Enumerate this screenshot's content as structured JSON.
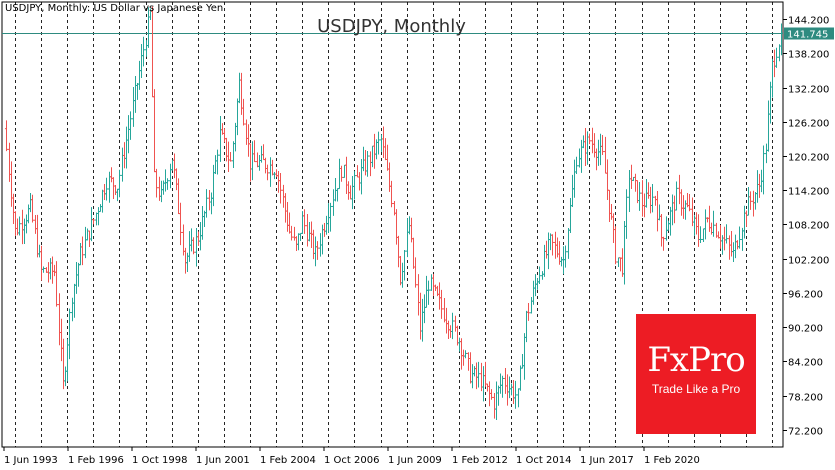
{
  "header": {
    "symbol_text": "USDJPY, Monthly:  US Dollar vs Japanese Yen"
  },
  "brand": {
    "name": "FxPro",
    "tagline": "Trade Like a Pro"
  },
  "colors": {
    "up": "#26a69a",
    "down": "#ef5350",
    "price_line": "#2e8b80",
    "logo_bg": "#ed1c24",
    "axis": "#000000"
  },
  "chart_data": {
    "type": "line",
    "subtype": "ohlc-bars",
    "title": "USDJPY, Monthly",
    "ylim": [
      69.2,
      147.2
    ],
    "y_ticks": [
      72.2,
      78.2,
      84.2,
      90.2,
      96.2,
      102.2,
      108.2,
      114.2,
      120.2,
      126.2,
      132.2,
      138.2,
      144.2
    ],
    "y_tick_labels": [
      "72.200",
      "78.200",
      "84.200",
      "90.200",
      "96.200",
      "102.200",
      "108.200",
      "114.200",
      "120.200",
      "126.200",
      "132.200",
      "138.200",
      "144.200"
    ],
    "x_tick_labels": [
      "1 Jun 1993",
      "1 Feb 1996",
      "1 Oct 1998",
      "1 Jun 2001",
      "1 Feb 2004",
      "1 Oct 2006",
      "1 Jun 2009",
      "1 Feb 2012",
      "1 Oct 2014",
      "1 Jun 2017",
      "1 Feb 2020"
    ],
    "grid": "vertical-dashed",
    "current_price": 141.745,
    "current_price_label": "141.745",
    "series": [
      {
        "name": "USDJPY",
        "points": [
          [
            "1993-01",
            125
          ],
          [
            "1993-06",
            107
          ],
          [
            "1994-01",
            111
          ],
          [
            "1994-06",
            100
          ],
          [
            "1994-12",
            100
          ],
          [
            "1995-04",
            80
          ],
          [
            "1995-08",
            96
          ],
          [
            "1995-12",
            103
          ],
          [
            "1996-06",
            109
          ],
          [
            "1996-12",
            116
          ],
          [
            "1997-05",
            115
          ],
          [
            "1997-12",
            129
          ],
          [
            "1998-08",
            145
          ],
          [
            "1998-10",
            116
          ],
          [
            "1999-01",
            113
          ],
          [
            "1999-06",
            120
          ],
          [
            "1999-12",
            102
          ],
          [
            "2000-06",
            106
          ],
          [
            "2000-12",
            114
          ],
          [
            "2001-04",
            124
          ],
          [
            "2001-09",
            119
          ],
          [
            "2002-01",
            133
          ],
          [
            "2002-06",
            119
          ],
          [
            "2002-12",
            119
          ],
          [
            "2003-06",
            118
          ],
          [
            "2003-12",
            107
          ],
          [
            "2004-03",
            104
          ],
          [
            "2004-06",
            109
          ],
          [
            "2004-12",
            103
          ],
          [
            "2005-06",
            111
          ],
          [
            "2005-12",
            118
          ],
          [
            "2006-04",
            114
          ],
          [
            "2006-10",
            118
          ],
          [
            "2007-06",
            123
          ],
          [
            "2007-12",
            111
          ],
          [
            "2008-03",
            99
          ],
          [
            "2008-07",
            108
          ],
          [
            "2008-12",
            90
          ],
          [
            "2009-04",
            98
          ],
          [
            "2009-12",
            92
          ],
          [
            "2010-06",
            88
          ],
          [
            "2010-11",
            82
          ],
          [
            "2011-04",
            81
          ],
          [
            "2011-10",
            77
          ],
          [
            "2012-02",
            81
          ],
          [
            "2012-09",
            78
          ],
          [
            "2013-01",
            92
          ],
          [
            "2013-06",
            99
          ],
          [
            "2013-12",
            105
          ],
          [
            "2014-06",
            102
          ],
          [
            "2014-12",
            120
          ],
          [
            "2015-06",
            123
          ],
          [
            "2015-12",
            120
          ],
          [
            "2016-06",
            103
          ],
          [
            "2016-09",
            101
          ],
          [
            "2016-12",
            117
          ],
          [
            "2017-06",
            112
          ],
          [
            "2017-12",
            113
          ],
          [
            "2018-03",
            106
          ],
          [
            "2018-10",
            113
          ],
          [
            "2019-03",
            111
          ],
          [
            "2019-08",
            106
          ],
          [
            "2019-12",
            109
          ],
          [
            "2020-03",
            108
          ],
          [
            "2020-12",
            103
          ],
          [
            "2021-06",
            111
          ],
          [
            "2021-12",
            115
          ],
          [
            "2022-03",
            122
          ],
          [
            "2022-06",
            136
          ],
          [
            "2022-08",
            139
          ],
          [
            "2022-10",
            141.745
          ]
        ]
      }
    ]
  }
}
